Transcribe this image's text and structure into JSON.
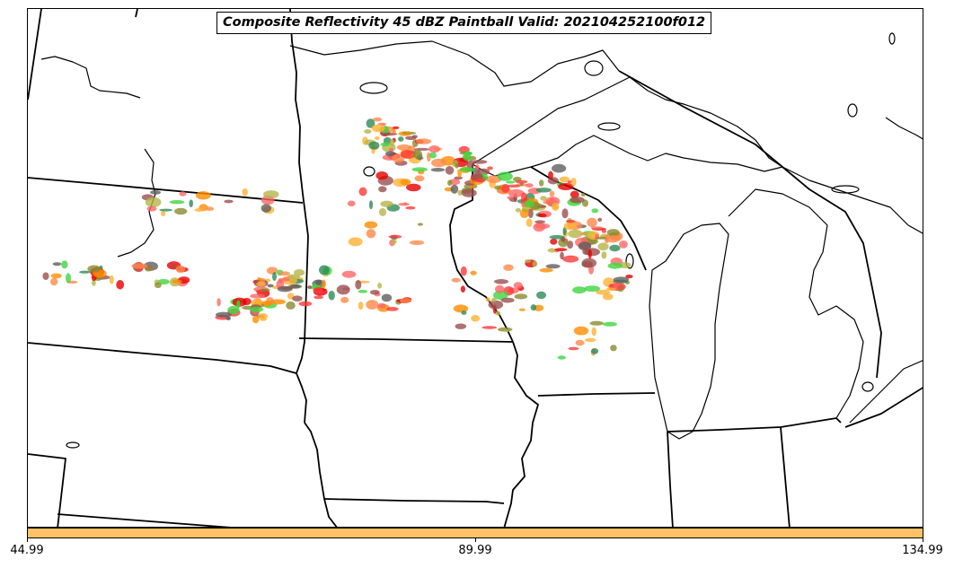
{
  "title": "Composite Reflectivity 45 dBZ Paintball Valid: 202104252100f012",
  "colorbar": {
    "color": "#ffc266",
    "tick_labels": [
      "44.99",
      "89.99",
      "134.99"
    ]
  },
  "paint_colors": [
    "#8b8b2e",
    "#ff3a3a",
    "#e60000",
    "#ff8c00",
    "#ff8a4a",
    "#ffb133",
    "#3fd63f",
    "#2e8b57",
    "#9b4f4f",
    "#5f5f5f",
    "#b5b54a",
    "#ff6666"
  ],
  "map": {
    "region": "Upper Midwest / Great Lakes",
    "boundary_color": "#000000",
    "background": "#ffffff"
  }
}
